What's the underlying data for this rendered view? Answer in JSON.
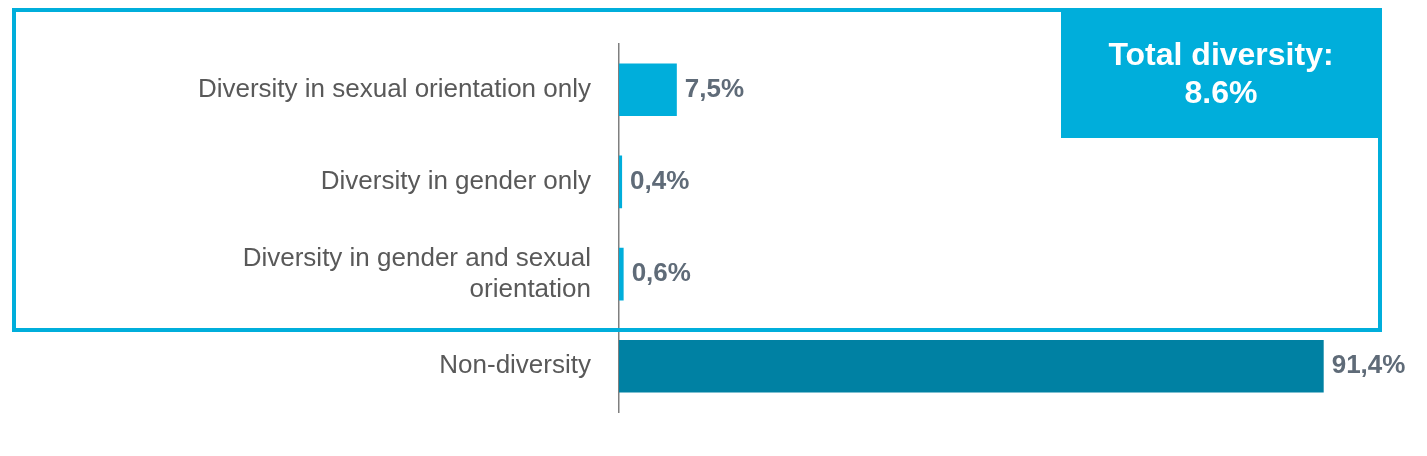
{
  "chart_data": {
    "type": "bar",
    "orientation": "horizontal",
    "categories": [
      "Diversity in sexual orientation only",
      "Diversity in gender only",
      "Diversity in gender and sexual orientation",
      "Non-diversity"
    ],
    "values": [
      7.5,
      0.4,
      0.6,
      91.4
    ],
    "colors": [
      "#00aedb",
      "#00aedb",
      "#00aedb",
      "#0081a3"
    ],
    "value_labels": [
      "7,5%",
      "0,4%",
      "0,6%",
      "91,4%"
    ],
    "annotations": [
      "Total diversity: 8.6%"
    ],
    "grid": false,
    "legend": false
  }
}
